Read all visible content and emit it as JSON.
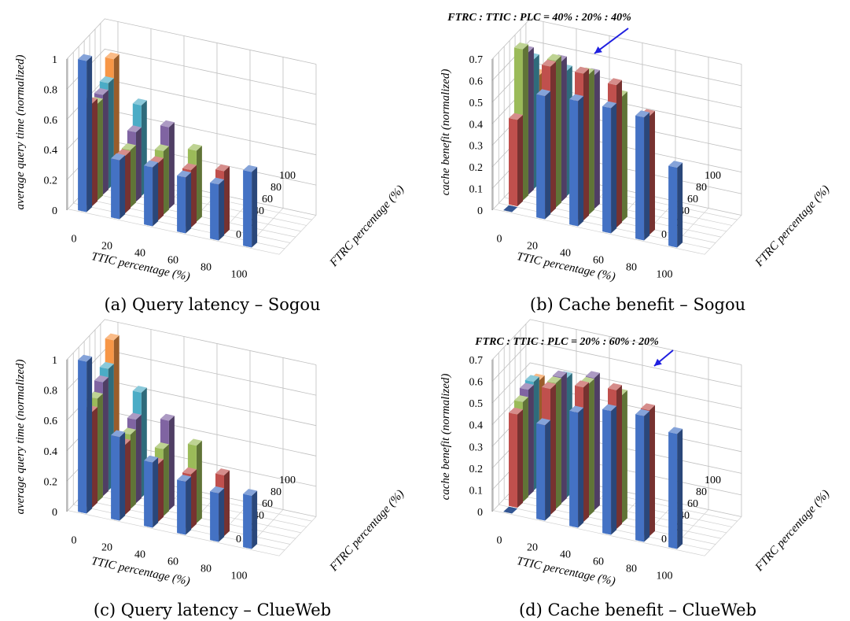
{
  "figure": {
    "captions": [
      "(a) Query latency – Sogou",
      "(b) Cache benefit – Sogou",
      "(c) Query latency – ClueWeb",
      "(d) Cache benefit – ClueWeb"
    ]
  },
  "chart_data": [
    {
      "type": "bar",
      "subtype": "3d-column",
      "ylabel": "average query time (normalized)",
      "xlabel": "TTIC percentage (%)",
      "zlabel": "FTRC percentage (%)",
      "x_ticks": [
        "0",
        "20",
        "40",
        "60",
        "80",
        "100"
      ],
      "z_ticks": [
        "0",
        "20",
        "40",
        "60",
        "80",
        "100"
      ],
      "y_ticks": [
        "0",
        "0.2",
        "0.4",
        "0.6",
        "0.8",
        "1"
      ],
      "ylim": [
        0,
        1
      ],
      "grid": true,
      "colors": [
        "#4472c4",
        "#c0504d",
        "#9bbb59",
        "#8064a2",
        "#4bacc6",
        "#f79646"
      ],
      "series": [
        {
          "ftrc": 0,
          "values": [
            1.0,
            0.39,
            0.39,
            0.37,
            0.37,
            0.5
          ]
        },
        {
          "ftrc": 20,
          "values": [
            0.68,
            0.38,
            0.38,
            0.38,
            0.42,
            null
          ]
        },
        {
          "ftrc": 40,
          "values": [
            0.64,
            0.38,
            0.42,
            0.47,
            null,
            null
          ]
        },
        {
          "ftrc": 60,
          "values": [
            0.66,
            0.46,
            0.54,
            null,
            null,
            null
          ]
        },
        {
          "ftrc": 80,
          "values": [
            0.7,
            0.6,
            null,
            null,
            null,
            null
          ]
        },
        {
          "ftrc": 100,
          "values": [
            0.82,
            null,
            null,
            null,
            null,
            null
          ]
        }
      ]
    },
    {
      "type": "bar",
      "subtype": "3d-column",
      "ylabel": "cache benefit (normalized)",
      "xlabel": "TTIC percentage (%)",
      "zlabel": "FTRC percentage (%)",
      "x_ticks": [
        "0",
        "20",
        "40",
        "60",
        "80",
        "100"
      ],
      "z_ticks": [
        "0",
        "20",
        "40",
        "60",
        "80",
        "100"
      ],
      "y_ticks": [
        "0",
        "0.1",
        "0.2",
        "0.3",
        "0.4",
        "0.5",
        "0.6",
        "0.7"
      ],
      "ylim": [
        0,
        0.7
      ],
      "grid": true,
      "colors": [
        "#4472c4",
        "#c0504d",
        "#9bbb59",
        "#8064a2",
        "#4bacc6",
        "#f79646"
      ],
      "annotation": "FTRC : TTIC : PLC = 40% : 20% : 40%",
      "series": [
        {
          "ftrc": 0,
          "values": [
            0.0,
            0.57,
            0.58,
            0.58,
            0.57,
            0.37
          ]
        },
        {
          "ftrc": 20,
          "values": [
            0.4,
            0.68,
            0.68,
            0.66,
            0.55,
            null
          ]
        },
        {
          "ftrc": 40,
          "values": [
            0.7,
            0.68,
            0.65,
            0.58,
            null,
            null
          ]
        },
        {
          "ftrc": 60,
          "values": [
            0.66,
            0.65,
            0.62,
            null,
            null,
            null
          ]
        },
        {
          "ftrc": 80,
          "values": [
            0.6,
            0.58,
            null,
            null,
            null,
            null
          ]
        },
        {
          "ftrc": 100,
          "values": [
            0.5,
            null,
            null,
            null,
            null,
            null
          ]
        }
      ]
    },
    {
      "type": "bar",
      "subtype": "3d-column",
      "ylabel": "average query time (normalized)",
      "xlabel": "TTIC percentage (%)",
      "zlabel": "FTRC percentage (%)",
      "x_ticks": [
        "0",
        "20",
        "40",
        "60",
        "80",
        "100"
      ],
      "z_ticks": [
        "0",
        "20",
        "40",
        "60",
        "80",
        "100"
      ],
      "y_ticks": [
        "0",
        "0.2",
        "0.4",
        "0.6",
        "0.8",
        "1"
      ],
      "ylim": [
        0,
        1
      ],
      "grid": true,
      "colors": [
        "#4472c4",
        "#c0504d",
        "#9bbb59",
        "#8064a2",
        "#4bacc6",
        "#f79646"
      ],
      "series": [
        {
          "ftrc": 0,
          "values": [
            1.0,
            0.55,
            0.43,
            0.35,
            0.32,
            0.35
          ]
        },
        {
          "ftrc": 20,
          "values": [
            0.63,
            0.46,
            0.38,
            0.36,
            0.4,
            null
          ]
        },
        {
          "ftrc": 40,
          "values": [
            0.68,
            0.49,
            0.44,
            0.51,
            null,
            null
          ]
        },
        {
          "ftrc": 60,
          "values": [
            0.75,
            0.55,
            0.59,
            null,
            null,
            null
          ]
        },
        {
          "ftrc": 80,
          "values": [
            0.8,
            0.69,
            null,
            null,
            null,
            null
          ]
        },
        {
          "ftrc": 100,
          "values": [
            0.95,
            null,
            null,
            null,
            null,
            null
          ]
        }
      ]
    },
    {
      "type": "bar",
      "subtype": "3d-column",
      "ylabel": "cache benefit (normalized)",
      "xlabel": "TTIC percentage (%)",
      "zlabel": "FTRC percentage (%)",
      "x_ticks": [
        "0",
        "20",
        "40",
        "60",
        "80",
        "100"
      ],
      "z_ticks": [
        "0",
        "20",
        "40",
        "60",
        "80",
        "100"
      ],
      "y_ticks": [
        "0",
        "0.1",
        "0.2",
        "0.3",
        "0.4",
        "0.5",
        "0.6",
        "0.7"
      ],
      "ylim": [
        0,
        0.7
      ],
      "grid": true,
      "colors": [
        "#4472c4",
        "#c0504d",
        "#9bbb59",
        "#8064a2",
        "#4bacc6",
        "#f79646"
      ],
      "annotation": "FTRC : TTIC : PLC = 20% : 60% : 20%",
      "series": [
        {
          "ftrc": 0,
          "values": [
            0.0,
            0.44,
            0.53,
            0.57,
            0.58,
            0.53
          ]
        },
        {
          "ftrc": 20,
          "values": [
            0.43,
            0.58,
            0.62,
            0.64,
            0.58,
            null
          ]
        },
        {
          "ftrc": 40,
          "values": [
            0.46,
            0.58,
            0.61,
            0.59,
            null,
            null
          ]
        },
        {
          "ftrc": 60,
          "values": [
            0.49,
            0.58,
            0.61,
            null,
            null,
            null
          ]
        },
        {
          "ftrc": 80,
          "values": [
            0.5,
            0.55,
            null,
            null,
            null,
            null
          ]
        },
        {
          "ftrc": 100,
          "values": [
            0.48,
            null,
            null,
            null,
            null,
            null
          ]
        }
      ]
    }
  ]
}
